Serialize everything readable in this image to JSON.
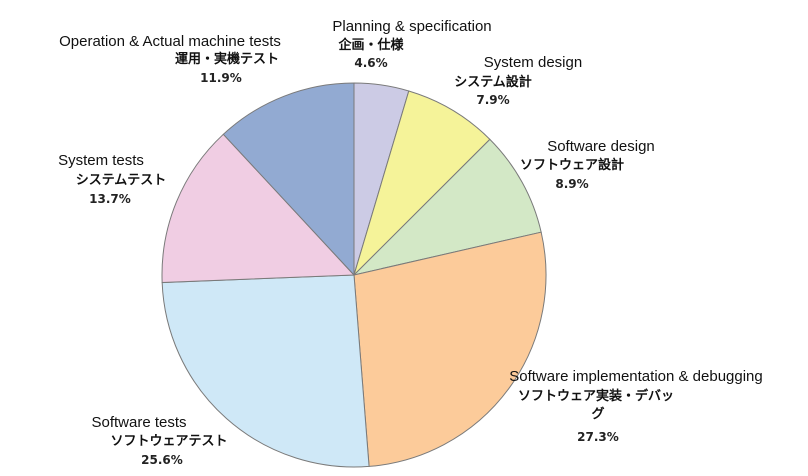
{
  "chart_data": {
    "type": "pie",
    "start_angle_deg": 0,
    "direction": "clockwise",
    "slices": [
      {
        "name": "Planning & specification",
        "jp": "企画・仕様",
        "value": 4.6,
        "pct_label": "4.6%",
        "color": "#cccbe5"
      },
      {
        "name": "System design",
        "jp": "システム設計",
        "value": 7.9,
        "pct_label": "7.9%",
        "color": "#f5f399"
      },
      {
        "name": "Software design",
        "jp": "ソフトウェア設計",
        "value": 8.9,
        "pct_label": "8.9%",
        "color": "#d3e8c6"
      },
      {
        "name": "Software implementation & debugging",
        "jp_lines": [
          "ソフトウェア実装・デバッ",
          "グ"
        ],
        "value": 27.3,
        "pct_label": "27.3%",
        "color": "#fccb9a"
      },
      {
        "name": "Software tests",
        "jp": "ソフトウェアテスト",
        "value": 25.6,
        "pct_label": "25.6%",
        "color": "#cfe8f7"
      },
      {
        "name": "System tests",
        "jp": "システムテスト",
        "value": 13.7,
        "pct_label": "13.7%",
        "color": "#f0cde3"
      },
      {
        "name": "Operation & Actual machine tests",
        "jp": "運用・実機テスト",
        "value": 11.9,
        "pct_label": "11.9%",
        "color": "#92aad2"
      }
    ]
  }
}
